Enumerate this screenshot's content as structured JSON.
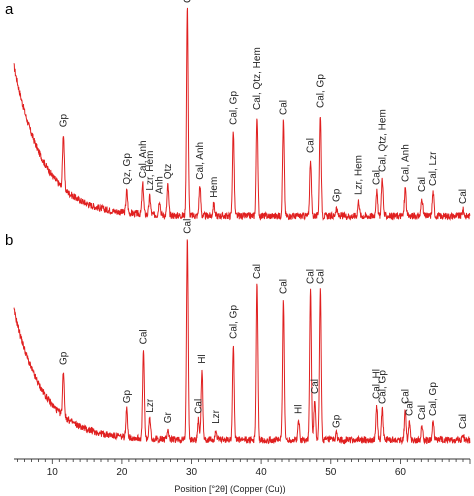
{
  "chart_data": [
    {
      "type": "line",
      "panel_label": "a",
      "title": "",
      "xlabel": "",
      "ylabel": "",
      "xlim": [
        4.5,
        70
      ],
      "grid": false,
      "color": "#e02020",
      "baseline": 12,
      "background": {
        "amplitude": 150,
        "decay": 4.2
      },
      "peaks": [
        {
          "x": 11.6,
          "h": 55,
          "label": "Gp"
        },
        {
          "x": 20.7,
          "h": 22,
          "label": "Qz, Gp"
        },
        {
          "x": 23.0,
          "h": 30,
          "label": "Cal, Anh"
        },
        {
          "x": 24.0,
          "h": 18,
          "label": "Lzr, Hem"
        },
        {
          "x": 25.4,
          "h": 15,
          "label": "Anh"
        },
        {
          "x": 26.6,
          "h": 30,
          "label": "Qtz"
        },
        {
          "x": 29.4,
          "h": 208,
          "label": "Cal"
        },
        {
          "x": 31.2,
          "h": 30,
          "label": "Cal, Anh"
        },
        {
          "x": 33.2,
          "h": 12,
          "label": "Hem"
        },
        {
          "x": 36.0,
          "h": 85,
          "label": "Cal, Gp"
        },
        {
          "x": 39.4,
          "h": 100,
          "label": "Cal, Qtz, Hem"
        },
        {
          "x": 43.2,
          "h": 95,
          "label": "Cal"
        },
        {
          "x": 47.1,
          "h": 57,
          "label": "Cal"
        },
        {
          "x": 48.5,
          "h": 102,
          "label": "Cal, Gp"
        },
        {
          "x": 50.8,
          "h": 8,
          "label": "Gp"
        },
        {
          "x": 54.0,
          "h": 15,
          "label": "Lzr, Hem"
        },
        {
          "x": 56.6,
          "h": 25,
          "label": "Cal"
        },
        {
          "x": 57.4,
          "h": 38,
          "label": "Cal, Qtz, Hem"
        },
        {
          "x": 60.7,
          "h": 28,
          "label": "Cal, Anh"
        },
        {
          "x": 63.1,
          "h": 18,
          "label": "Cal"
        },
        {
          "x": 64.7,
          "h": 24,
          "label": "Cal, Lzr"
        },
        {
          "x": 69.0,
          "h": 6,
          "label": "Cal"
        }
      ]
    },
    {
      "type": "line",
      "panel_label": "b",
      "title": "",
      "xlabel": "Position [°2θ] (Copper (Cu))",
      "ylabel": "",
      "xlim": [
        4.5,
        70
      ],
      "x_ticks": [
        10,
        20,
        30,
        40,
        50,
        60
      ],
      "grid": false,
      "color": "#e02020",
      "baseline": 12,
      "background": {
        "amplitude": 130,
        "decay": 4.2
      },
      "peaks": [
        {
          "x": 11.6,
          "h": 45,
          "label": "Gp"
        },
        {
          "x": 20.7,
          "h": 28,
          "label": "Gp"
        },
        {
          "x": 23.1,
          "h": 88,
          "label": "Cal"
        },
        {
          "x": 24.0,
          "h": 20,
          "label": "Lzr"
        },
        {
          "x": 26.6,
          "h": 10,
          "label": "Gr"
        },
        {
          "x": 29.4,
          "h": 200,
          "label": "Cal"
        },
        {
          "x": 31.5,
          "h": 70,
          "label": "Hl"
        },
        {
          "x": 31.0,
          "h": 20,
          "label": "Cal"
        },
        {
          "x": 33.5,
          "h": 10,
          "label": "Lzr"
        },
        {
          "x": 36.0,
          "h": 95,
          "label": "Cal, Gp"
        },
        {
          "x": 39.4,
          "h": 155,
          "label": "Cal"
        },
        {
          "x": 43.2,
          "h": 140,
          "label": "Cal"
        },
        {
          "x": 45.4,
          "h": 20,
          "label": "Hl"
        },
        {
          "x": 47.1,
          "h": 150,
          "label": "Cal"
        },
        {
          "x": 48.5,
          "h": 150,
          "label": "Cal"
        },
        {
          "x": 47.7,
          "h": 40,
          "label": "Cal"
        },
        {
          "x": 50.8,
          "h": 6,
          "label": "Gp"
        },
        {
          "x": 56.6,
          "h": 35,
          "label": "Cal, Hl"
        },
        {
          "x": 57.4,
          "h": 30,
          "label": "Cal, Gp"
        },
        {
          "x": 60.7,
          "h": 30,
          "label": "Cal"
        },
        {
          "x": 61.3,
          "h": 18,
          "label": "Cal"
        },
        {
          "x": 63.1,
          "h": 14,
          "label": "Cal"
        },
        {
          "x": 64.7,
          "h": 18,
          "label": "Cal, Gp"
        },
        {
          "x": 69.0,
          "h": 5,
          "label": "Cal"
        }
      ]
    }
  ]
}
